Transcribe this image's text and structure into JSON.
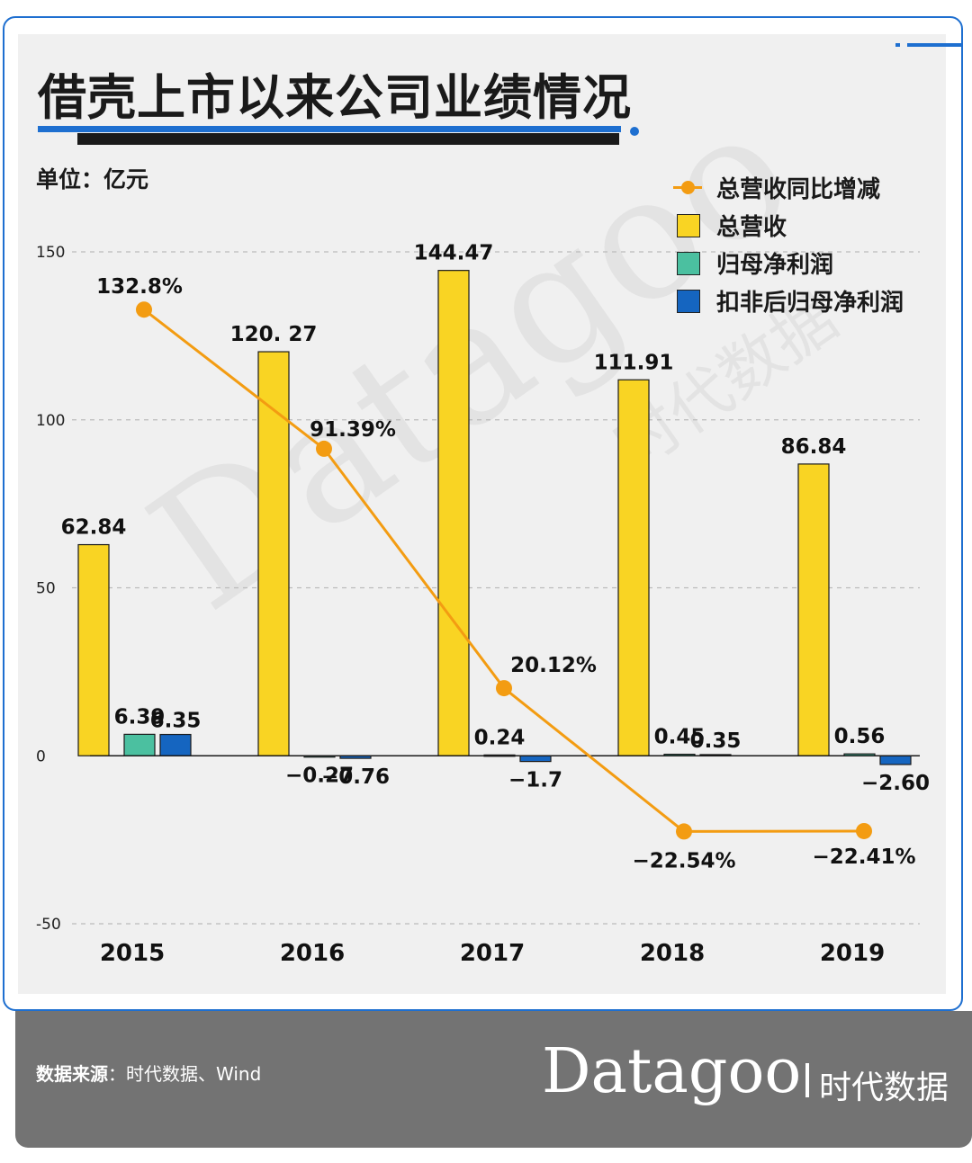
{
  "title": "借壳上市以来公司业绩情况",
  "unit_label": "单位：亿元",
  "legend": {
    "growth": "总营收同比增减",
    "revenue": "总营收",
    "net_profit": "归母净利润",
    "deducted_profit": "扣非后归母净利润"
  },
  "colors": {
    "revenue": "#f9d423",
    "net_profit": "#4bc0a0",
    "deducted_profit": "#1565c0",
    "growth": "#f39c12",
    "accent": "#1e6fd0"
  },
  "footer": {
    "source_label": "数据来源",
    "source_text": "：时代数据、Wind",
    "brand_latin": "Datagoo",
    "brand_cn": "时代数据"
  },
  "watermark": {
    "latin": "Datagoo",
    "cn": "时代数据"
  },
  "chart_data": {
    "type": "bar",
    "categories": [
      "2015",
      "2016",
      "2017",
      "2018",
      "2019"
    ],
    "ylim": [
      -50,
      150
    ],
    "yticks": [
      150,
      100,
      50,
      0,
      -50
    ],
    "grid": true,
    "legend_position": "top-right",
    "series": [
      {
        "name": "总营收",
        "type": "bar",
        "values": [
          62.84,
          120.27,
          144.47,
          111.91,
          86.84
        ],
        "labels": [
          "62.84",
          "120. 27",
          "144.47",
          "111.91",
          "86.84"
        ]
      },
      {
        "name": "归母净利润",
        "type": "bar",
        "values": [
          6.39,
          -0.27,
          0.24,
          0.45,
          0.56
        ],
        "labels": [
          "6.39",
          "−0.27",
          "0.24",
          "0.45",
          "0.56"
        ]
      },
      {
        "name": "扣非后归母净利润",
        "type": "bar",
        "values": [
          6.35,
          -0.76,
          -1.7,
          0.35,
          -2.6
        ],
        "labels": [
          "6.35",
          "−0.76",
          "−1.7",
          "0.35",
          "−2.60"
        ]
      },
      {
        "name": "总营收同比增减",
        "type": "line",
        "values": [
          132.8,
          91.39,
          20.12,
          -22.54,
          -22.41
        ],
        "labels": [
          "132.8%",
          "91.39%",
          "20.12%",
          "−22.54%",
          "−22.41%"
        ]
      }
    ]
  }
}
